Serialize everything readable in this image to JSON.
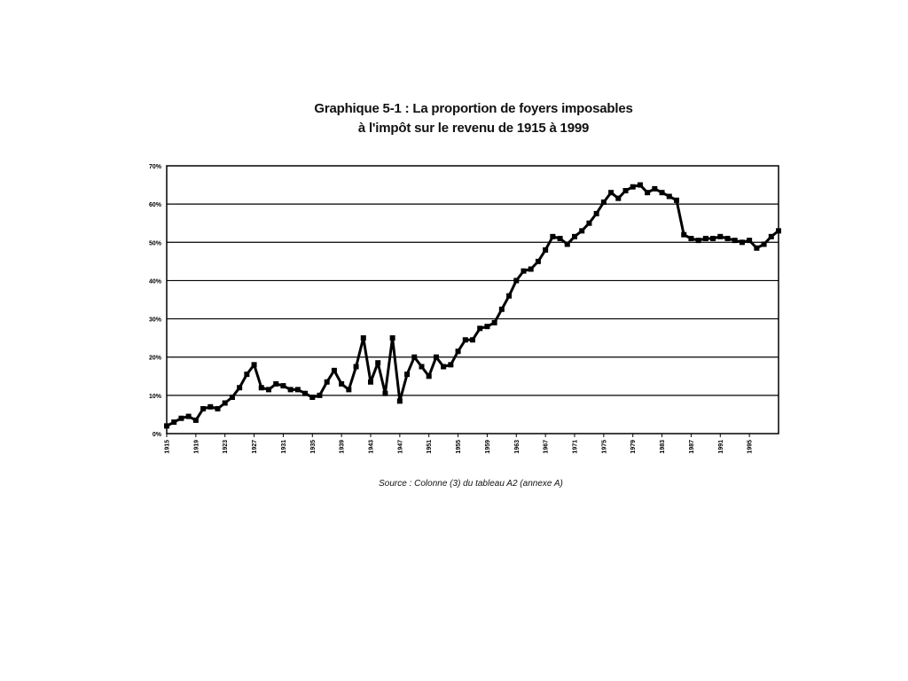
{
  "chart_data": {
    "type": "line",
    "title": "Graphique 5-1 : La proportion de foyers imposables",
    "subtitle": "à l'impôt sur le revenu de 1915 à 1999",
    "xlabel": "",
    "ylabel": "",
    "ylim": [
      0,
      70
    ],
    "y_ticks": [
      "0%",
      "10%",
      "20%",
      "30%",
      "40%",
      "50%",
      "60%",
      "70%"
    ],
    "x_ticks": [
      1915,
      1919,
      1923,
      1927,
      1931,
      1935,
      1939,
      1943,
      1947,
      1951,
      1955,
      1959,
      1963,
      1967,
      1971,
      1975,
      1979,
      1983,
      1987,
      1991,
      1995
    ],
    "grid": "horizontal",
    "legend": "none",
    "line_color": "#000000",
    "source": "Source : Colonne (3) du tableau A2 (annexe A)",
    "x": [
      1915,
      1916,
      1917,
      1918,
      1919,
      1920,
      1921,
      1922,
      1923,
      1924,
      1925,
      1926,
      1927,
      1928,
      1929,
      1930,
      1931,
      1932,
      1933,
      1934,
      1935,
      1936,
      1937,
      1938,
      1939,
      1940,
      1941,
      1942,
      1943,
      1944,
      1945,
      1946,
      1947,
      1948,
      1949,
      1950,
      1951,
      1952,
      1953,
      1954,
      1955,
      1956,
      1957,
      1958,
      1959,
      1960,
      1961,
      1962,
      1963,
      1964,
      1965,
      1966,
      1967,
      1968,
      1969,
      1970,
      1971,
      1972,
      1973,
      1974,
      1975,
      1976,
      1977,
      1978,
      1979,
      1980,
      1981,
      1982,
      1983,
      1984,
      1985,
      1986,
      1987,
      1988,
      1989,
      1990,
      1991,
      1992,
      1993,
      1994,
      1995,
      1996,
      1997,
      1998,
      1999
    ],
    "values": [
      2,
      3,
      4,
      4.5,
      3.5,
      6.5,
      7,
      6.5,
      8,
      9.5,
      12,
      15.5,
      18,
      12,
      11.5,
      13,
      12.5,
      11.5,
      11.5,
      10.5,
      9.5,
      10,
      13.5,
      16.5,
      13,
      11.5,
      17.5,
      25,
      13.5,
      18.5,
      10.5,
      25,
      8.5,
      15.5,
      20,
      17.5,
      15,
      20,
      17.5,
      18,
      21.5,
      24.5,
      24.5,
      27.5,
      28,
      29,
      32.5,
      36,
      40,
      42.5,
      43,
      45,
      48,
      51.5,
      51,
      49.5,
      51.5,
      53,
      55,
      57.5,
      60.5,
      63,
      61.5,
      63.5,
      64.5,
      65,
      63,
      64,
      63,
      62,
      61,
      52,
      51,
      50.5,
      51,
      51,
      51.5,
      51,
      50.5,
      50,
      50.5,
      48.5,
      49.5,
      51.5,
      53
    ]
  }
}
